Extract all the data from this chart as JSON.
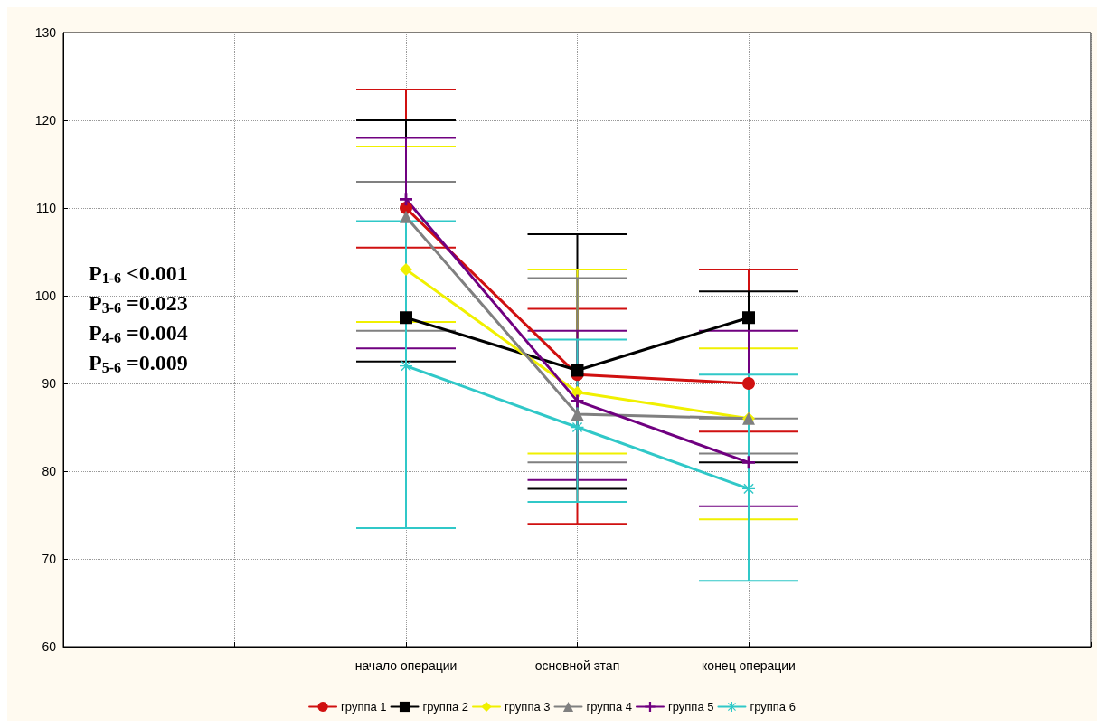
{
  "chart_data": {
    "type": "line",
    "categories": [
      null,
      null,
      "начало операции",
      "основной этап",
      "конец операции",
      null,
      null
    ],
    "ylim": [
      60,
      130
    ],
    "yticks": [
      60,
      70,
      80,
      90,
      100,
      110,
      120,
      130
    ],
    "grid": true,
    "legend": "bottom",
    "annotations": [
      "P$_{1-6}$ <0.001",
      "P$_{3-6}$ =0.023",
      "P$_{4-6}$ =0.004",
      "P$_{5-6}$ =0.009"
    ],
    "series": [
      {
        "name": "группа 1",
        "color": "#d01010",
        "marker": "circle",
        "values": [
          null,
          null,
          110,
          91,
          90,
          null,
          null
        ],
        "errors": [
          null,
          null,
          [
            105.5,
            123.5
          ],
          [
            74,
            98.5
          ],
          [
            84.5,
            103
          ],
          null,
          null
        ]
      },
      {
        "name": "группа 2",
        "color": "#000000",
        "marker": "square",
        "values": [
          null,
          null,
          97.5,
          91.5,
          97.5,
          null,
          null
        ],
        "errors": [
          null,
          null,
          [
            92.5,
            120
          ],
          [
            78,
            107
          ],
          [
            81,
            100.5
          ],
          null,
          null
        ]
      },
      {
        "name": "группа 3",
        "color": "#f0f000",
        "marker": "diamond",
        "values": [
          null,
          null,
          103,
          89,
          86,
          null,
          null
        ],
        "errors": [
          null,
          null,
          [
            97,
            117
          ],
          [
            82,
            103
          ],
          [
            74.5,
            94
          ],
          null,
          null
        ]
      },
      {
        "name": "группа 4",
        "color": "#808080",
        "marker": "triangle",
        "values": [
          null,
          null,
          109,
          86.5,
          86,
          null,
          null
        ],
        "errors": [
          null,
          null,
          [
            96,
            113
          ],
          [
            81,
            102
          ],
          [
            82,
            86
          ],
          null,
          null
        ]
      },
      {
        "name": "группа 5",
        "color": "#700080",
        "marker": "cross",
        "values": [
          null,
          null,
          111,
          88,
          81,
          null,
          null
        ],
        "errors": [
          null,
          null,
          [
            94,
            118
          ],
          [
            79,
            96
          ],
          [
            76,
            96
          ],
          null,
          null
        ]
      },
      {
        "name": "группа 6",
        "color": "#30c8c8",
        "marker": "star",
        "values": [
          null,
          null,
          92,
          85,
          78,
          null,
          null
        ],
        "errors": [
          null,
          null,
          [
            73.5,
            108.5
          ],
          [
            76.5,
            95
          ],
          [
            67.5,
            91
          ],
          null,
          null
        ]
      }
    ]
  }
}
